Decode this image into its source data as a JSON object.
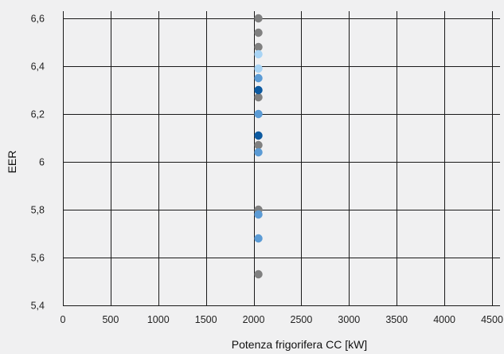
{
  "chart_data": {
    "type": "scatter",
    "title": "",
    "xlabel": "Potenza frigorifera CC [kW]",
    "ylabel": "EER",
    "xlim": [
      0,
      4500
    ],
    "ylim": [
      5.4,
      6.6
    ],
    "x_ticks": [
      0,
      500,
      1000,
      1500,
      2000,
      2500,
      3000,
      3500,
      4000,
      4500
    ],
    "y_ticks": [
      5.4,
      5.6,
      5.8,
      6,
      6.2,
      6.4,
      6.6
    ],
    "x_tick_labels": [
      "0",
      "500",
      "1000",
      "1500",
      "2000",
      "2500",
      "3000",
      "3500",
      "4000",
      "4500"
    ],
    "y_tick_labels": [
      "5,4",
      "5,6",
      "5,8",
      "6",
      "6,2",
      "6,4",
      "6,6"
    ],
    "grid": true,
    "legend": "none",
    "series": [
      {
        "color": "#808080",
        "points": [
          {
            "x": 2050,
            "y": 6.6
          },
          {
            "x": 2050,
            "y": 6.54
          },
          {
            "x": 2050,
            "y": 6.48
          },
          {
            "x": 2050,
            "y": 6.27
          },
          {
            "x": 2050,
            "y": 6.07
          },
          {
            "x": 2050,
            "y": 5.8
          },
          {
            "x": 2050,
            "y": 5.53
          }
        ]
      },
      {
        "color": "#a8d4f5",
        "points": [
          {
            "x": 2050,
            "y": 6.45
          },
          {
            "x": 2050,
            "y": 6.39
          }
        ]
      },
      {
        "color": "#5b9bd5",
        "points": [
          {
            "x": 2050,
            "y": 6.35
          },
          {
            "x": 2050,
            "y": 6.2
          },
          {
            "x": 2050,
            "y": 6.04
          },
          {
            "x": 2050,
            "y": 5.78
          },
          {
            "x": 2050,
            "y": 5.68
          }
        ]
      },
      {
        "color": "#0d5aa0",
        "points": [
          {
            "x": 2050,
            "y": 6.3
          },
          {
            "x": 2050,
            "y": 6.11
          }
        ]
      }
    ]
  }
}
